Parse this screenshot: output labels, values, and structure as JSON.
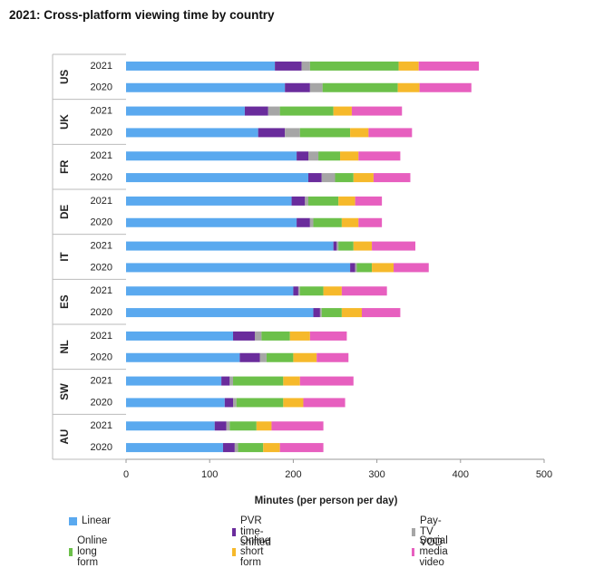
{
  "chart_data": {
    "type": "bar",
    "orientation": "horizontal",
    "stacked": true,
    "title": "2021: Cross-platform viewing time by country",
    "xlabel": "Minutes (per person per day)",
    "ylabel": "",
    "xlim": [
      0,
      500
    ],
    "xticks": [
      0,
      100,
      200,
      300,
      400,
      500
    ],
    "grid": false,
    "legend_position": "bottom",
    "groups": [
      {
        "country": "US",
        "rows": [
          {
            "year": "2021",
            "values": [
              178,
              32,
              10,
              106,
              24,
              72
            ]
          },
          {
            "year": "2020",
            "values": [
              190,
              30,
              15,
              90,
              26,
              62
            ]
          }
        ]
      },
      {
        "country": "UK",
        "rows": [
          {
            "year": "2021",
            "values": [
              142,
              28,
              14,
              64,
              22,
              60
            ]
          },
          {
            "year": "2020",
            "values": [
              158,
              32,
              18,
              60,
              22,
              52
            ]
          }
        ]
      },
      {
        "country": "FR",
        "rows": [
          {
            "year": "2021",
            "values": [
              204,
              14,
              12,
              26,
              22,
              50
            ]
          },
          {
            "year": "2020",
            "values": [
              218,
              16,
              16,
              22,
              24,
              44
            ]
          }
        ]
      },
      {
        "country": "DE",
        "rows": [
          {
            "year": "2021",
            "values": [
              198,
              16,
              4,
              36,
              20,
              32
            ]
          },
          {
            "year": "2020",
            "values": [
              204,
              16,
              4,
              34,
              20,
              28
            ]
          }
        ]
      },
      {
        "country": "IT",
        "rows": [
          {
            "year": "2021",
            "values": [
              248,
              4,
              2,
              18,
              22,
              52
            ]
          },
          {
            "year": "2020",
            "values": [
              268,
              6,
              2,
              18,
              26,
              42
            ]
          }
        ]
      },
      {
        "country": "ES",
        "rows": [
          {
            "year": "2021",
            "values": [
              200,
              6,
              2,
              28,
              22,
              54
            ]
          },
          {
            "year": "2020",
            "values": [
              224,
              8,
              2,
              24,
              24,
              46
            ]
          }
        ]
      },
      {
        "country": "NL",
        "rows": [
          {
            "year": "2021",
            "values": [
              128,
              26,
              8,
              34,
              24,
              44
            ]
          },
          {
            "year": "2020",
            "values": [
              136,
              24,
              8,
              32,
              28,
              38
            ]
          }
        ]
      },
      {
        "country": "SW",
        "rows": [
          {
            "year": "2021",
            "values": [
              114,
              10,
              4,
              60,
              20,
              64
            ]
          },
          {
            "year": "2020",
            "values": [
              118,
              10,
              4,
              56,
              24,
              50
            ]
          }
        ]
      },
      {
        "country": "AU",
        "rows": [
          {
            "year": "2021",
            "values": [
              106,
              14,
              4,
              32,
              18,
              62
            ]
          },
          {
            "year": "2020",
            "values": [
              116,
              14,
              4,
              30,
              20,
              52
            ]
          }
        ]
      }
    ],
    "series": [
      {
        "name": "Linear",
        "color": "#5aa9ef"
      },
      {
        "name": "PVR time-shifted",
        "color": "#6a2c9c"
      },
      {
        "name": "Pay-TV VOD",
        "color": "#a6a6a6"
      },
      {
        "name": "Online long form",
        "color": "#6cc04a"
      },
      {
        "name": "Online short form",
        "color": "#f6b92b"
      },
      {
        "name": "Social media video",
        "color": "#e75fbf"
      }
    ]
  }
}
